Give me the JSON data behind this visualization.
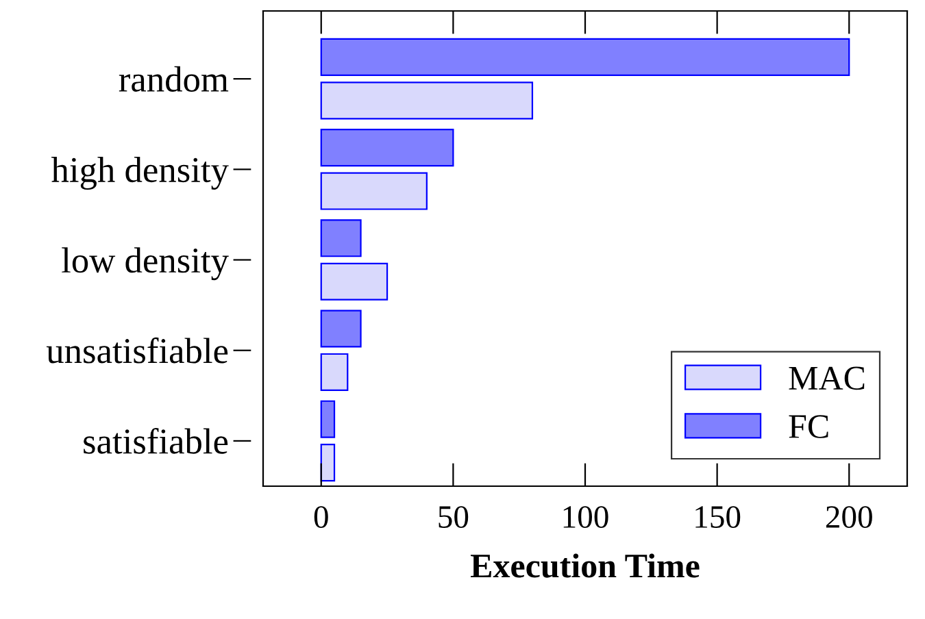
{
  "chart_data": {
    "type": "bar",
    "orientation": "horizontal",
    "xlabel": "Execution Time",
    "categories": [
      "random",
      "high density",
      "low density",
      "unsatisfiable",
      "satisfiable"
    ],
    "series": [
      {
        "name": "MAC",
        "color": "#d9d9fc",
        "values": [
          80,
          40,
          25,
          10,
          5
        ]
      },
      {
        "name": "FC",
        "color": "#8080ff",
        "values": [
          200,
          50,
          15,
          15,
          5
        ]
      }
    ],
    "xlim": [
      -22,
      222
    ],
    "xticks": [
      0,
      50,
      100,
      150,
      200
    ],
    "grid": false,
    "legend": "bottom right"
  }
}
